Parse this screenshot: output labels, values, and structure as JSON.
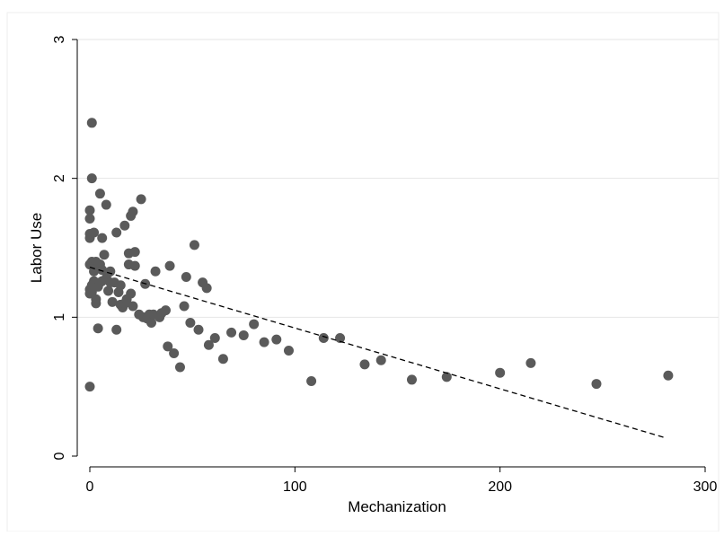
{
  "chart_data": {
    "type": "scatter",
    "xlabel": "Mechanization",
    "ylabel": "Labor Use",
    "xlim": [
      -5,
      305
    ],
    "ylim": [
      -0.05,
      3.05
    ],
    "xticks": [
      0,
      100,
      200,
      300
    ],
    "yticks": [
      0,
      1,
      2,
      3
    ],
    "xtick_labels": [
      "0",
      "100",
      "200",
      "300"
    ],
    "ytick_labels": [
      "0",
      "1",
      "2",
      "3"
    ],
    "grid": "horizontal",
    "legend": "none",
    "colors": {
      "marker": "#5a5a5a",
      "fit_line": "#000000",
      "grid": "#e6e6e6",
      "axis": "#000000"
    },
    "fit_line": {
      "style": "dashed",
      "points": [
        [
          0,
          1.36
        ],
        [
          281,
          0.13
        ]
      ]
    },
    "points": [
      [
        0,
        0.5
      ],
      [
        0,
        1.57
      ],
      [
        0,
        1.6
      ],
      [
        0,
        1.71
      ],
      [
        0,
        1.77
      ],
      [
        0,
        1.38
      ],
      [
        0,
        1.2
      ],
      [
        0,
        1.17
      ],
      [
        1,
        2.4
      ],
      [
        1,
        2.0
      ],
      [
        1,
        1.4
      ],
      [
        1,
        1.23
      ],
      [
        1,
        1.18
      ],
      [
        2,
        1.33
      ],
      [
        2,
        1.61
      ],
      [
        2,
        1.26
      ],
      [
        3,
        1.1
      ],
      [
        3,
        1.13
      ],
      [
        3,
        1.4
      ],
      [
        4,
        0.92
      ],
      [
        4,
        1.36
      ],
      [
        4,
        1.22
      ],
      [
        5,
        1.89
      ],
      [
        5,
        1.38
      ],
      [
        5,
        1.25
      ],
      [
        6,
        1.57
      ],
      [
        6,
        1.34
      ],
      [
        6,
        1.26
      ],
      [
        7,
        1.45
      ],
      [
        8,
        1.81
      ],
      [
        8,
        1.28
      ],
      [
        9,
        1.19
      ],
      [
        9,
        1.32
      ],
      [
        10,
        1.33
      ],
      [
        10,
        1.25
      ],
      [
        11,
        1.11
      ],
      [
        12,
        1.25
      ],
      [
        13,
        1.61
      ],
      [
        13,
        0.91
      ],
      [
        14,
        1.18
      ],
      [
        15,
        1.09
      ],
      [
        15,
        1.23
      ],
      [
        16,
        1.07
      ],
      [
        17,
        1.66
      ],
      [
        17,
        1.1
      ],
      [
        18,
        1.13
      ],
      [
        19,
        1.38
      ],
      [
        19,
        1.46
      ],
      [
        20,
        1.17
      ],
      [
        20,
        1.73
      ],
      [
        21,
        1.76
      ],
      [
        21,
        1.08
      ],
      [
        22,
        1.47
      ],
      [
        22,
        1.37
      ],
      [
        24,
        1.02
      ],
      [
        25,
        1.85
      ],
      [
        26,
        1.0
      ],
      [
        27,
        1.24
      ],
      [
        28,
        0.99
      ],
      [
        29,
        1.02
      ],
      [
        30,
        0.96
      ],
      [
        31,
        1.02
      ],
      [
        32,
        1.33
      ],
      [
        34,
        1.0
      ],
      [
        35,
        1.03
      ],
      [
        37,
        1.05
      ],
      [
        38,
        0.79
      ],
      [
        39,
        1.37
      ],
      [
        41,
        0.74
      ],
      [
        44,
        0.64
      ],
      [
        46,
        1.08
      ],
      [
        47,
        1.29
      ],
      [
        49,
        0.96
      ],
      [
        51,
        1.52
      ],
      [
        53,
        0.91
      ],
      [
        55,
        1.25
      ],
      [
        57,
        1.21
      ],
      [
        58,
        0.8
      ],
      [
        61,
        0.85
      ],
      [
        65,
        0.7
      ],
      [
        69,
        0.89
      ],
      [
        75,
        0.87
      ],
      [
        80,
        0.95
      ],
      [
        85,
        0.82
      ],
      [
        91,
        0.84
      ],
      [
        97,
        0.76
      ],
      [
        108,
        0.54
      ],
      [
        114,
        0.85
      ],
      [
        122,
        0.85
      ],
      [
        134,
        0.66
      ],
      [
        142,
        0.69
      ],
      [
        157,
        0.55
      ],
      [
        174,
        0.57
      ],
      [
        200,
        0.6
      ],
      [
        215,
        0.67
      ],
      [
        247,
        0.52
      ],
      [
        282,
        0.58
      ]
    ]
  }
}
